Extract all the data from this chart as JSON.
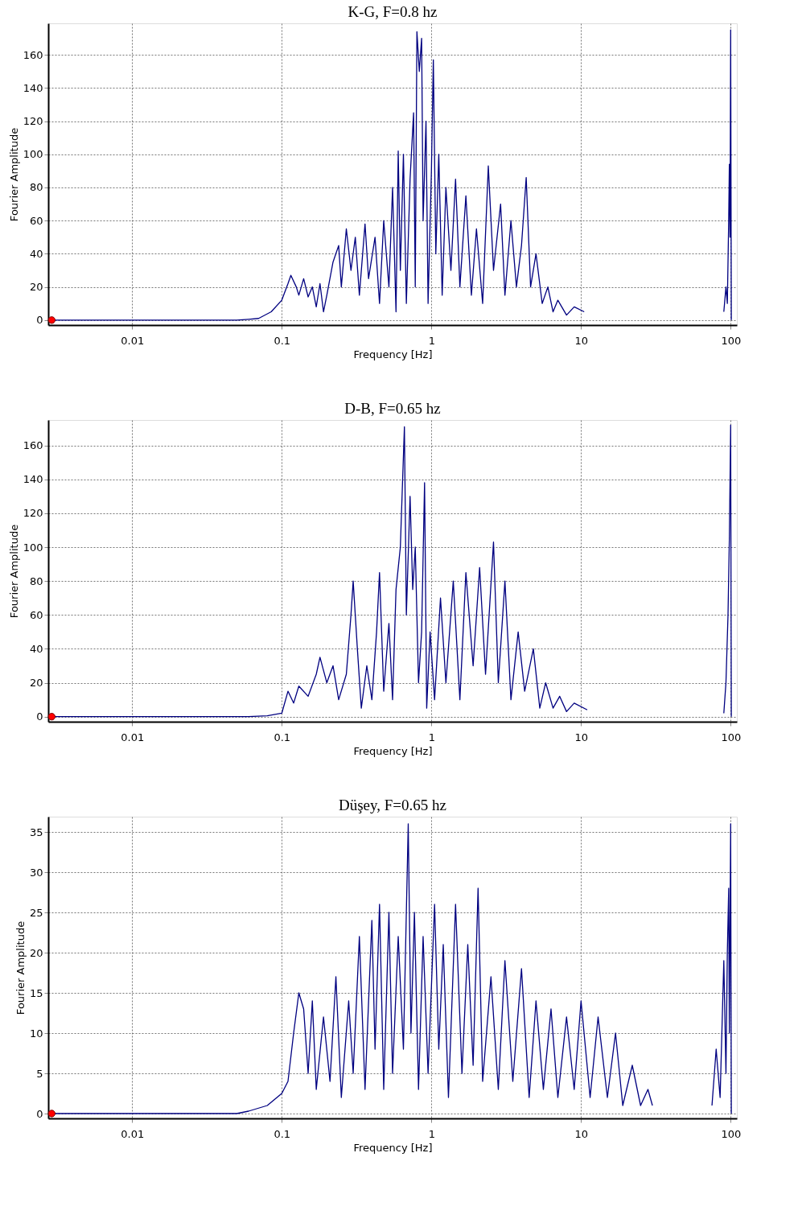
{
  "chart_data": [
    {
      "type": "line",
      "title": "K-G, F=0.8 hz",
      "xlabel": "Frequency [Hz]",
      "ylabel": "Fourier Amplitude",
      "log": "x",
      "grid": true,
      "line_style": "solid",
      "xlim": [
        0.00275,
        110
      ],
      "xticks": [
        0.01,
        0.1,
        1,
        10,
        100
      ],
      "ylim": [
        -3,
        179
      ],
      "yticks": [
        0,
        20,
        40,
        60,
        80,
        100,
        120,
        140,
        160
      ],
      "series": [
        {
          "marker": "none",
          "color": "#000080",
          "x": [
            0.0029,
            0.01,
            0.03,
            0.05,
            0.06,
            0.07,
            0.085,
            0.1,
            0.11,
            0.115,
            0.125,
            0.13,
            0.14,
            0.15,
            0.16,
            0.17,
            0.18,
            0.19,
            0.2,
            0.22,
            0.24,
            0.25,
            0.27,
            0.29,
            0.31,
            0.33,
            0.36,
            0.38,
            0.42,
            0.45,
            0.48,
            0.52,
            0.55,
            0.58,
            0.6,
            0.62,
            0.65,
            0.68,
            0.72,
            0.76,
            0.78,
            0.8,
            0.83,
            0.86,
            0.88,
            0.92,
            0.95,
            1.0,
            1.03,
            1.07,
            1.12,
            1.18,
            1.25,
            1.35,
            1.45,
            1.55,
            1.7,
            1.85,
            2.0,
            2.2,
            2.4,
            2.6,
            2.9,
            3.1,
            3.4,
            3.7,
            4.0,
            4.3,
            4.6,
            5.0,
            5.5,
            6.0,
            6.5,
            7.0,
            8.0,
            9.0,
            10.5,
            50,
            90,
            93,
            95,
            97,
            98,
            99,
            100,
            101
          ],
          "values": [
            0,
            0,
            0,
            0,
            0.5,
            1,
            5,
            12,
            22,
            27,
            20,
            15,
            25,
            14,
            20,
            8,
            22,
            5,
            15,
            35,
            45,
            20,
            55,
            30,
            50,
            15,
            58,
            25,
            50,
            10,
            60,
            20,
            80,
            5,
            102,
            30,
            100,
            10,
            85,
            125,
            20,
            174,
            150,
            170,
            60,
            120,
            10,
            90,
            157,
            40,
            100,
            15,
            80,
            30,
            85,
            20,
            75,
            15,
            55,
            10,
            93,
            30,
            70,
            15,
            60,
            20,
            45,
            86,
            20,
            40,
            10,
            20,
            5,
            12,
            3,
            8,
            5,
            null,
            5,
            20,
            10,
            60,
            94,
            50,
            175,
            0
          ]
        },
        {
          "type": "scatter",
          "marker": "circle",
          "color": "#ff0000",
          "x": [
            0.0029
          ],
          "values": [
            0
          ]
        }
      ]
    },
    {
      "type": "line",
      "title": "D-B, F=0.65 hz",
      "xlabel": "Frequency [Hz]",
      "ylabel": "Fourier Amplitude",
      "log": "x",
      "grid": true,
      "line_style": "solid",
      "xlim": [
        0.00275,
        110
      ],
      "xticks": [
        0.01,
        0.1,
        1,
        10,
        100
      ],
      "ylim": [
        -3,
        175
      ],
      "yticks": [
        0,
        20,
        40,
        60,
        80,
        100,
        120,
        140,
        160
      ],
      "series": [
        {
          "marker": "none",
          "color": "#000080",
          "x": [
            0.0029,
            0.01,
            0.03,
            0.06,
            0.08,
            0.1,
            0.11,
            0.12,
            0.13,
            0.15,
            0.17,
            0.18,
            0.2,
            0.22,
            0.24,
            0.27,
            0.29,
            0.3,
            0.32,
            0.34,
            0.37,
            0.4,
            0.43,
            0.45,
            0.48,
            0.52,
            0.55,
            0.58,
            0.62,
            0.66,
            0.68,
            0.72,
            0.75,
            0.78,
            0.82,
            0.86,
            0.9,
            0.93,
            0.98,
            1.05,
            1.15,
            1.25,
            1.4,
            1.55,
            1.7,
            1.9,
            2.1,
            2.3,
            2.6,
            2.8,
            3.1,
            3.4,
            3.8,
            4.2,
            4.8,
            5.3,
            5.8,
            6.5,
            7.2,
            8.0,
            9.0,
            11.0,
            50,
            90,
            93,
            96,
            98,
            100,
            101
          ],
          "values": [
            0,
            0,
            0,
            0,
            0.5,
            2,
            15,
            8,
            18,
            12,
            25,
            35,
            20,
            30,
            10,
            25,
            60,
            80,
            40,
            5,
            30,
            10,
            50,
            85,
            15,
            55,
            10,
            75,
            100,
            171,
            60,
            130,
            75,
            100,
            20,
            50,
            138,
            5,
            50,
            10,
            70,
            20,
            80,
            10,
            85,
            30,
            88,
            25,
            103,
            20,
            80,
            10,
            50,
            15,
            40,
            5,
            20,
            5,
            12,
            3,
            8,
            4,
            null,
            2,
            20,
            60,
            105,
            172,
            0
          ]
        },
        {
          "type": "scatter",
          "marker": "circle",
          "color": "#ff0000",
          "x": [
            0.0029
          ],
          "values": [
            0
          ]
        }
      ]
    },
    {
      "type": "line",
      "title": "Düşey, F=0.65 hz",
      "xlabel": "Frequency [Hz]",
      "ylabel": "Fourier Amplitude",
      "log": "x",
      "grid": true,
      "line_style": "solid",
      "xlim": [
        0.00275,
        110
      ],
      "xticks": [
        0.01,
        0.1,
        1,
        10,
        100
      ],
      "ylim": [
        -0.6,
        36.9
      ],
      "yticks": [
        0,
        5,
        10,
        15,
        20,
        25,
        30,
        35
      ],
      "series": [
        {
          "marker": "none",
          "color": "#000080",
          "x": [
            0.0029,
            0.01,
            0.03,
            0.05,
            0.06,
            0.08,
            0.1,
            0.11,
            0.12,
            0.13,
            0.14,
            0.15,
            0.16,
            0.17,
            0.19,
            0.21,
            0.23,
            0.25,
            0.28,
            0.3,
            0.33,
            0.36,
            0.4,
            0.42,
            0.45,
            0.48,
            0.52,
            0.55,
            0.6,
            0.65,
            0.7,
            0.73,
            0.77,
            0.82,
            0.88,
            0.95,
            1.05,
            1.12,
            1.2,
            1.3,
            1.45,
            1.6,
            1.75,
            1.9,
            2.05,
            2.2,
            2.5,
            2.8,
            3.1,
            3.5,
            4.0,
            4.5,
            5.0,
            5.6,
            6.3,
            7,
            8,
            9,
            10,
            11.5,
            13,
            15,
            17,
            19,
            22,
            25,
            28,
            30,
            50,
            75,
            80,
            85,
            90,
            93,
            95,
            97,
            98,
            100,
            101
          ],
          "values": [
            0,
            0,
            0,
            0,
            0.3,
            1,
            2.5,
            4,
            10,
            15,
            13,
            5,
            14,
            3,
            12,
            4,
            17,
            2,
            14,
            5,
            22,
            3,
            24,
            8,
            26,
            3,
            25,
            5,
            22,
            8,
            36,
            10,
            25,
            3,
            22,
            5,
            26,
            8,
            21,
            2,
            26,
            5,
            21,
            6,
            28,
            4,
            17,
            3,
            19,
            4,
            18,
            2,
            14,
            3,
            13,
            2,
            12,
            3,
            14,
            2,
            12,
            2,
            10,
            1,
            6,
            1,
            3,
            1,
            null,
            1,
            8,
            2,
            19,
            5,
            20,
            28,
            10,
            36,
            0
          ]
        },
        {
          "type": "scatter",
          "marker": "circle",
          "color": "#ff0000",
          "x": [
            0.0029
          ],
          "values": [
            0
          ]
        }
      ]
    }
  ]
}
